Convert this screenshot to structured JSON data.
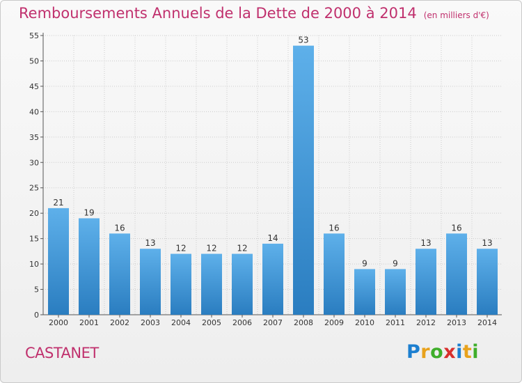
{
  "header": {
    "title": "Remboursements Annuels de la Dette de 2000 à 2014",
    "subtitle": "(en milliers d'€)"
  },
  "footer": {
    "commune": "CASTANET",
    "logo_text": "Proxiti"
  },
  "colors": {
    "title": "#c0306d",
    "bar_top": "#5eb0ea",
    "bar_bottom": "#2a7dc0",
    "grid": "#cccccc"
  },
  "chart_data": {
    "type": "bar",
    "title": "Remboursements Annuels de la Dette de 2000 à 2014",
    "subtitle": "(en milliers d'€)",
    "categories": [
      "2000",
      "2001",
      "2002",
      "2003",
      "2004",
      "2005",
      "2006",
      "2007",
      "2008",
      "2009",
      "2010",
      "2011",
      "2012",
      "2013",
      "2014"
    ],
    "values": [
      21,
      19,
      16,
      13,
      12,
      12,
      12,
      14,
      53,
      16,
      9,
      9,
      13,
      16,
      13
    ],
    "ylim": [
      0,
      55
    ],
    "yticks": [
      0,
      5,
      10,
      15,
      20,
      25,
      30,
      35,
      40,
      45,
      50,
      55
    ],
    "grid": true,
    "data_labels": true
  }
}
